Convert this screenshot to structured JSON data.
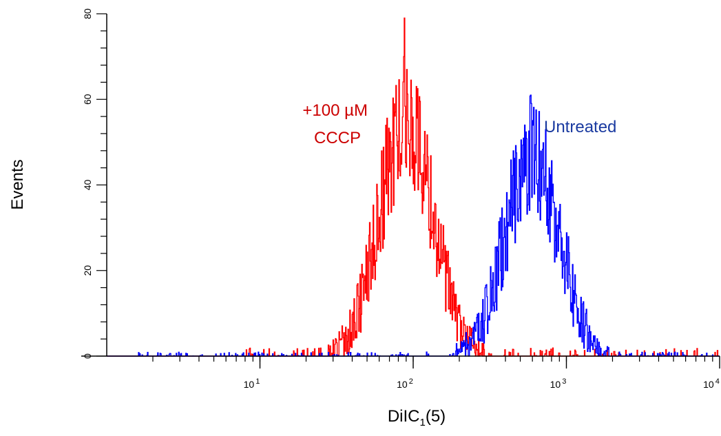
{
  "chart_data": {
    "type": "line",
    "xlabel": "DiIC",
    "xlabel_sub": "1",
    "xlabel_tail": "(5)",
    "ylabel": "Events",
    "xscale": "log",
    "xlim": [
      1,
      10000
    ],
    "ylim": [
      0,
      80
    ],
    "grid": false,
    "y_ticks": [
      "0",
      "20",
      "40",
      "60",
      "80"
    ],
    "x_ticks": [
      {
        "base": "10",
        "exp": "1"
      },
      {
        "base": "10",
        "exp": "2"
      },
      {
        "base": "10",
        "exp": "3"
      },
      {
        "base": "10",
        "exp": "4"
      }
    ],
    "series": [
      {
        "name": "+100 µM CCCP",
        "label_lines": [
          "+100 µM",
          "CCCP"
        ],
        "color": "#ff0000",
        "label_color": "#cc0000",
        "center": 90,
        "peak": 55,
        "max": 79,
        "sigma_log": 0.175,
        "tail": {
          "onset": 8,
          "height": 1.2
        }
      },
      {
        "name": "Untreated",
        "label_lines": [
          "Untreated"
        ],
        "color": "#0000ff",
        "label_color": "#1a3aa0",
        "center": 600,
        "peak": 47,
        "max": 61,
        "sigma_log": 0.175,
        "tail": {
          "onset": 1.5,
          "height": 0.6
        }
      }
    ]
  }
}
